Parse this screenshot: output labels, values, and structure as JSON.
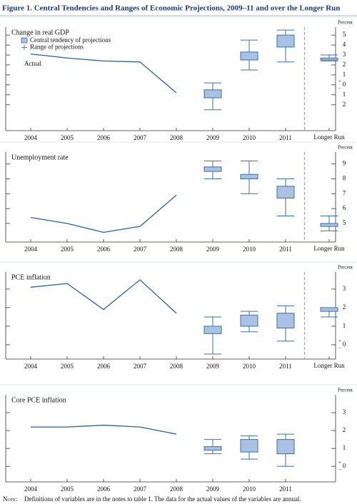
{
  "figure_title": "Figure 1. Central Tendencies and Ranges of Economic Projections, 2009–11 and over the Longer Run",
  "note_label": "Note:",
  "note": "Definitions of variables are in the notes to table 1. The data for the actual values of the variables are annual.",
  "chart_data": [
    {
      "type": "box",
      "title": "Change in real GDP",
      "ylabel": "Percent",
      "legend": [
        "Central tendency of projections",
        "Range of projections"
      ],
      "annotation": "Actual",
      "categories": [
        "2004",
        "2005",
        "2006",
        "2007",
        "2008",
        "2009",
        "2010",
        "2011",
        "Longer Run"
      ],
      "actual": [
        3.1,
        2.7,
        2.4,
        2.3,
        -0.8,
        null,
        null,
        null,
        null
      ],
      "central_low": [
        null,
        null,
        null,
        null,
        null,
        -1.3,
        2.5,
        3.8,
        2.5
      ],
      "central_high": [
        null,
        null,
        null,
        null,
        null,
        -0.5,
        3.3,
        5.0,
        2.7
      ],
      "range_low": [
        null,
        null,
        null,
        null,
        null,
        -2.5,
        1.5,
        2.3,
        2.4
      ],
      "range_high": [
        null,
        null,
        null,
        null,
        null,
        0.2,
        4.5,
        5.5,
        3.0
      ],
      "ylim": [
        -4.6,
        5.8
      ],
      "yticks": [
        5,
        4,
        3,
        2,
        1,
        0,
        {
          "value": -1,
          "label": "1"
        },
        {
          "value": -2,
          "label": "2"
        }
      ],
      "sign_labels": [
        "+",
        "−"
      ],
      "colors": {
        "box": "#a9c1e2",
        "edge": "#3d6fa8",
        "line": "#2d5f9c"
      }
    },
    {
      "type": "box",
      "title": "Unemployment rate",
      "ylabel": "Percent",
      "categories": [
        "2004",
        "2005",
        "2006",
        "2007",
        "2008",
        "2009",
        "2010",
        "2011",
        "Longer Run"
      ],
      "actual": [
        5.4,
        5.0,
        4.4,
        4.8,
        6.9,
        null,
        null,
        null,
        null
      ],
      "central_low": [
        null,
        null,
        null,
        null,
        null,
        8.5,
        8.0,
        6.7,
        4.8
      ],
      "central_high": [
        null,
        null,
        null,
        null,
        null,
        8.8,
        8.3,
        7.5,
        5.0
      ],
      "range_low": [
        null,
        null,
        null,
        null,
        null,
        8.0,
        7.0,
        5.5,
        4.5
      ],
      "range_high": [
        null,
        null,
        null,
        null,
        null,
        9.2,
        9.2,
        8.0,
        5.5
      ],
      "ylim": [
        3.75,
        9.8
      ],
      "yticks": [
        9,
        8,
        7,
        6,
        5
      ],
      "colors": {
        "box": "#a9c1e2",
        "edge": "#3d6fa8",
        "line": "#2d5f9c"
      }
    },
    {
      "type": "box",
      "title": "PCE inflation",
      "ylabel": "Percent",
      "categories": [
        "2004",
        "2005",
        "2006",
        "2007",
        "2008",
        "2009",
        "2010",
        "2011",
        "Longer Run"
      ],
      "actual": [
        3.1,
        3.3,
        1.9,
        3.5,
        1.7,
        null,
        null,
        null,
        null
      ],
      "central_low": [
        null,
        null,
        null,
        null,
        null,
        0.6,
        1.0,
        0.9,
        1.8
      ],
      "central_high": [
        null,
        null,
        null,
        null,
        null,
        1.0,
        1.6,
        1.7,
        2.0
      ],
      "range_low": [
        null,
        null,
        null,
        null,
        null,
        -0.5,
        0.7,
        0.2,
        1.5
      ],
      "range_high": [
        null,
        null,
        null,
        null,
        null,
        1.5,
        1.8,
        2.1,
        2.0
      ],
      "ylim": [
        -0.77,
        3.92
      ],
      "yticks": [
        3,
        2,
        1,
        0
      ],
      "sign_labels": [
        "+",
        "−"
      ],
      "colors": {
        "box": "#a9c1e2",
        "edge": "#3d6fa8",
        "line": "#2d5f9c"
      }
    },
    {
      "type": "box",
      "title": "Core PCE inflation",
      "ylabel": "Percent",
      "categories": [
        "2004",
        "2005",
        "2006",
        "2007",
        "2008",
        "2009",
        "2010",
        "2011"
      ],
      "actual": [
        2.2,
        2.2,
        2.3,
        2.2,
        1.8,
        null,
        null,
        null
      ],
      "central_low": [
        null,
        null,
        null,
        null,
        null,
        0.9,
        0.8,
        0.7
      ],
      "central_high": [
        null,
        null,
        null,
        null,
        null,
        1.1,
        1.5,
        1.5
      ],
      "range_low": [
        null,
        null,
        null,
        null,
        null,
        0.7,
        0.4,
        0.0
      ],
      "range_high": [
        null,
        null,
        null,
        null,
        null,
        1.5,
        1.7,
        1.8
      ],
      "ylim": [
        -0.87,
        4.0
      ],
      "yticks": [
        3,
        2,
        1,
        0
      ],
      "sign_labels": [
        "+",
        "−"
      ],
      "colors": {
        "box": "#a9c1e2",
        "edge": "#3d6fa8",
        "line": "#2d5f9c"
      }
    }
  ]
}
